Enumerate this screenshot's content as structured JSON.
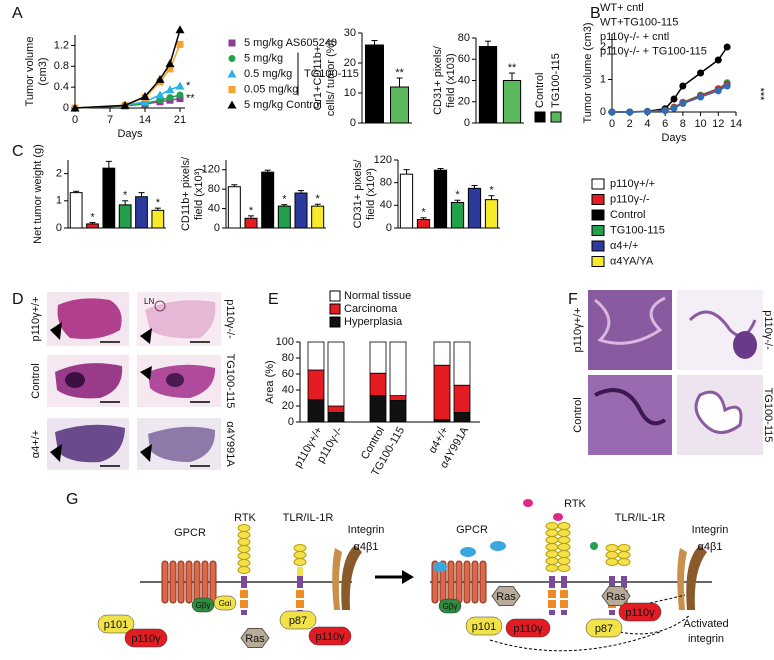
{
  "panel_labels": [
    "A",
    "B",
    "C",
    "D",
    "E",
    "F",
    "G"
  ],
  "chart_data": [
    {
      "type": "line",
      "ylabel": [
        "Tumor volume",
        "(cm3)"
      ],
      "xlabel": "Days",
      "xlim": [
        0,
        22
      ],
      "xticks": [
        0,
        7,
        14,
        21
      ],
      "ylim": [
        0,
        1.4
      ],
      "yticks": [
        0,
        0.4,
        0.8,
        1.2
      ],
      "x": [
        0,
        10,
        14,
        17,
        19,
        21
      ],
      "bracket_label": "TG100-115",
      "series": [
        {
          "name": "5 mg/kg AS605240",
          "color": "#8e3a96",
          "marker": "square",
          "values": [
            0,
            0.04,
            0.08,
            0.12,
            0.15,
            0.18
          ],
          "end_label": "**"
        },
        {
          "name": "5 mg/kg",
          "color": "#22a04b",
          "marker": "circle",
          "values": [
            0,
            0.04,
            0.09,
            0.15,
            0.2,
            0.25
          ]
        },
        {
          "name": "0.5 mg/kg",
          "color": "#2bb3e8",
          "marker": "triangle",
          "values": [
            0,
            0.05,
            0.12,
            0.25,
            0.35,
            0.42
          ],
          "end_label": "*"
        },
        {
          "name": "0.05 mg/kg",
          "color": "#f5a230",
          "marker": "square",
          "values": [
            0,
            0.05,
            0.2,
            0.5,
            0.75,
            1.22
          ]
        },
        {
          "name": "5 mg/kg Control",
          "color": "#000000",
          "marker": "triangle",
          "values": [
            0,
            0.05,
            0.22,
            0.55,
            0.85,
            1.5
          ]
        }
      ]
    },
    {
      "type": "bar",
      "ylabel": [
        "Gr1+CD11b+",
        "cells/ tumor (%)"
      ],
      "ylim": [
        0,
        30
      ],
      "yticks": [
        0,
        10,
        20,
        30
      ],
      "values": [
        26,
        12
      ],
      "errors": [
        1.5,
        3
      ],
      "stars": [
        null,
        "**"
      ],
      "colors": [
        "#000000",
        "#5cb85c"
      ]
    },
    {
      "type": "bar",
      "ylabel": [
        "CD31+ pixels/",
        "field (x103)"
      ],
      "ylim": [
        0,
        80
      ],
      "yticks": [
        0,
        20,
        40,
        60,
        80
      ],
      "values": [
        72,
        40
      ],
      "errors": [
        5,
        7
      ],
      "stars": [
        null,
        "**"
      ],
      "colors": [
        "#000000",
        "#5cb85c"
      ],
      "categories": [
        "Control",
        "TG100-115"
      ]
    },
    {
      "type": "line",
      "ylabel": [
        "Tumor volume (cm3)"
      ],
      "xlabel": "Days",
      "xlim": [
        0,
        14
      ],
      "xticks": [
        0,
        2,
        4,
        6,
        8,
        10,
        12,
        14
      ],
      "ylim": [
        0,
        2.4
      ],
      "yticks": [
        0,
        1,
        2
      ],
      "annotation": "***",
      "x": [
        0,
        2,
        4,
        6,
        7,
        8,
        10,
        12,
        13
      ],
      "series": [
        {
          "name": "WT+ cntl",
          "color": "#000000",
          "marker": "circle",
          "values": [
            0,
            0,
            0.02,
            0.1,
            0.4,
            0.8,
            1.2,
            1.6,
            2.0
          ]
        },
        {
          "name": "WT+TG100-115",
          "color": "#22a04b",
          "marker": "circle",
          "values": [
            0,
            0,
            0.01,
            0.05,
            0.15,
            0.3,
            0.52,
            0.72,
            0.9
          ]
        },
        {
          "name": "p110γ-/- + cntl",
          "color": "#e31b23",
          "marker": "circle",
          "values": [
            0,
            0,
            0.01,
            0.05,
            0.14,
            0.28,
            0.5,
            0.7,
            0.85
          ]
        },
        {
          "name": "p110γ-/- + TG100-115",
          "color": "#2f6db5",
          "marker": "circle",
          "values": [
            0,
            0,
            0.01,
            0.04,
            0.12,
            0.26,
            0.46,
            0.65,
            0.8
          ]
        }
      ]
    },
    {
      "type": "bar",
      "ylabel": [
        "Net tumor weight (g)"
      ],
      "ylim": [
        0,
        2.5
      ],
      "yticks": [
        0,
        1,
        2
      ],
      "values": [
        1.3,
        0.15,
        2.2,
        0.85,
        1.15,
        0.65
      ],
      "errors": [
        0.05,
        0.05,
        0.25,
        0.15,
        0.15,
        0.08
      ],
      "stars": [
        null,
        "*",
        null,
        "*",
        null,
        "*"
      ],
      "colors": [
        "#ffffff",
        "#e31b23",
        "#000000",
        "#22a04b",
        "#2b3a9c",
        "#f7ea2a"
      ],
      "categories": [
        "p110γ+/+",
        "p110γ-/-",
        "Control",
        "TG100-115",
        "α4+/+",
        "α4YA/YA"
      ]
    },
    {
      "type": "bar",
      "ylabel": [
        "CD11b+ pixels/",
        "field (x10³)"
      ],
      "ylim": [
        0,
        140
      ],
      "yticks": [
        0,
        40,
        80,
        120
      ],
      "values": [
        85,
        20,
        115,
        45,
        72,
        45
      ],
      "errors": [
        4,
        5,
        4,
        3,
        5,
        4
      ],
      "stars": [
        null,
        "*",
        null,
        "*",
        null,
        "*"
      ],
      "colors": [
        "#ffffff",
        "#e31b23",
        "#000000",
        "#22a04b",
        "#2b3a9c",
        "#f7ea2a"
      ]
    },
    {
      "type": "bar",
      "ylabel": [
        "CD31+ pixels/",
        "field (x10³)"
      ],
      "ylim": [
        0,
        120
      ],
      "yticks": [
        0,
        40,
        80,
        120
      ],
      "values": [
        95,
        15,
        102,
        45,
        70,
        50
      ],
      "errors": [
        8,
        3,
        3,
        4,
        5,
        7
      ],
      "stars": [
        null,
        "*",
        null,
        "*",
        null,
        "*"
      ],
      "colors": [
        "#ffffff",
        "#e31b23",
        "#000000",
        "#22a04b",
        "#2b3a9c",
        "#f7ea2a"
      ]
    },
    {
      "type": "stacked_bar",
      "ylabel": [
        "Area (%)"
      ],
      "ylim": [
        0,
        100
      ],
      "yticks": [
        0,
        20,
        40,
        60,
        80,
        100
      ],
      "categories": [
        "p110γ+/+",
        "p110γ-/-",
        "Control",
        "TG100-115",
        "α4+/+",
        "α4Y991A"
      ],
      "series": [
        {
          "name": "Normal tissue",
          "color": "#ffffff",
          "values": [
            35,
            80,
            39,
            67,
            29,
            54
          ]
        },
        {
          "name": "Carcinoma",
          "color": "#e31b23",
          "values": [
            37,
            8,
            28,
            6,
            68,
            34
          ]
        },
        {
          "name": "Hyperplasia",
          "color": "#111111",
          "values": [
            28,
            12,
            33,
            27,
            3,
            12
          ]
        }
      ]
    }
  ],
  "panel_d": {
    "labels": [
      "p110γ+/+",
      "p110γ-/-",
      "Control",
      "TG100-115",
      "α4+/+",
      "α4Y991A"
    ],
    "annotation": "LN"
  },
  "panel_f": {
    "labels": [
      "p110γ+/+",
      "p110γ-/-",
      "Control",
      "TG100-115"
    ]
  },
  "panel_g": {
    "left": {
      "gpcr": "GPCR",
      "rtk": "RTK",
      "tlr": "TLR/IL-1R",
      "integrin": "Integrin",
      "integrin_subunit": "α4β1",
      "gbg": "Gβγ",
      "gai": "Gαi",
      "p101": "p101",
      "p110": "p110γ",
      "ras": "Ras",
      "p87": "p87",
      "p110b": "p110γ"
    },
    "right": {
      "gpcr": "GPCR",
      "rtk": "RTK",
      "tlr": "TLR/IL-1R",
      "integrin": "Integrin",
      "integrin_subunit": "α4β1",
      "gbg": "Gβγ",
      "ras": "Ras",
      "p101": "p101",
      "p110": "p110γ",
      "ras2": "Ras",
      "p110b": "p110γ",
      "p87": "p87",
      "activated": [
        "Activated",
        "integrin"
      ]
    }
  }
}
